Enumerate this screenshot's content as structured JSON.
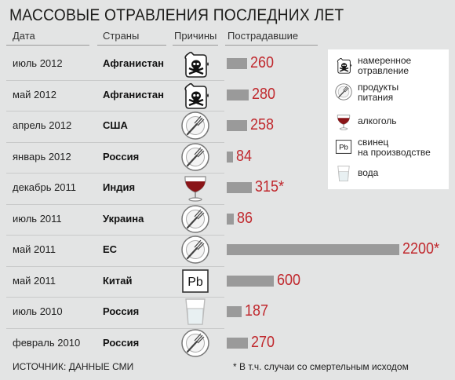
{
  "title": "МАССОВЫЕ ОТРАВЛЕНИЯ ПОСЛЕДНИХ ЛЕТ",
  "headers": {
    "date": "Дата",
    "country": "Страны",
    "cause": "Причины",
    "victims": "Пострадавшие"
  },
  "legend": [
    {
      "icon": "skull-bottle-icon",
      "label": "намеренное\nотравление"
    },
    {
      "icon": "plate-icon",
      "label": "продукты\nпитания"
    },
    {
      "icon": "wine-glass-icon",
      "label": "алкоголь"
    },
    {
      "icon": "lead-icon",
      "label": "свинец\nна производстве"
    },
    {
      "icon": "water-glass-icon",
      "label": "вода"
    }
  ],
  "pb_label": "Pb",
  "footer": {
    "source": "ИСТОЧНИК: ДАННЫЕ СМИ",
    "note": "* В т.ч. случаи со смертельным исходом"
  },
  "chart_data": {
    "type": "bar",
    "orientation": "horizontal",
    "title": "МАССОВЫЕ ОТРАВЛЕНИЯ ПОСЛЕДНИХ ЛЕТ",
    "bar_color": "#9a9a9a",
    "value_color": "#c0282d",
    "rows": [
      {
        "date": "июль 2012",
        "country": "Афганистан",
        "cause": "skull-bottle-icon",
        "value": 260,
        "label": "260"
      },
      {
        "date": "май 2012",
        "country": "Афганистан",
        "cause": "skull-bottle-icon",
        "value": 280,
        "label": "280"
      },
      {
        "date": "апрель 2012",
        "country": "США",
        "cause": "plate-icon",
        "value": 258,
        "label": "258"
      },
      {
        "date": "январь 2012",
        "country": "Россия",
        "cause": "plate-icon",
        "value": 84,
        "label": "84"
      },
      {
        "date": "декабрь 2011",
        "country": "Индия",
        "cause": "wine-glass-icon",
        "value": 315,
        "label": "315*"
      },
      {
        "date": "июль 2011",
        "country": "Украина",
        "cause": "plate-icon",
        "value": 86,
        "label": "86"
      },
      {
        "date": "май 2011",
        "country": "ЕС",
        "cause": "plate-icon",
        "value": 2200,
        "label": "2200*"
      },
      {
        "date": "май 2011",
        "country": "Китай",
        "cause": "lead-icon",
        "value": 600,
        "label": "600"
      },
      {
        "date": "июль 2010",
        "country": "Россия",
        "cause": "water-glass-icon",
        "value": 187,
        "label": "187"
      },
      {
        "date": "февраль 2010",
        "country": "Россия",
        "cause": "plate-icon",
        "value": 270,
        "label": "270"
      }
    ]
  }
}
